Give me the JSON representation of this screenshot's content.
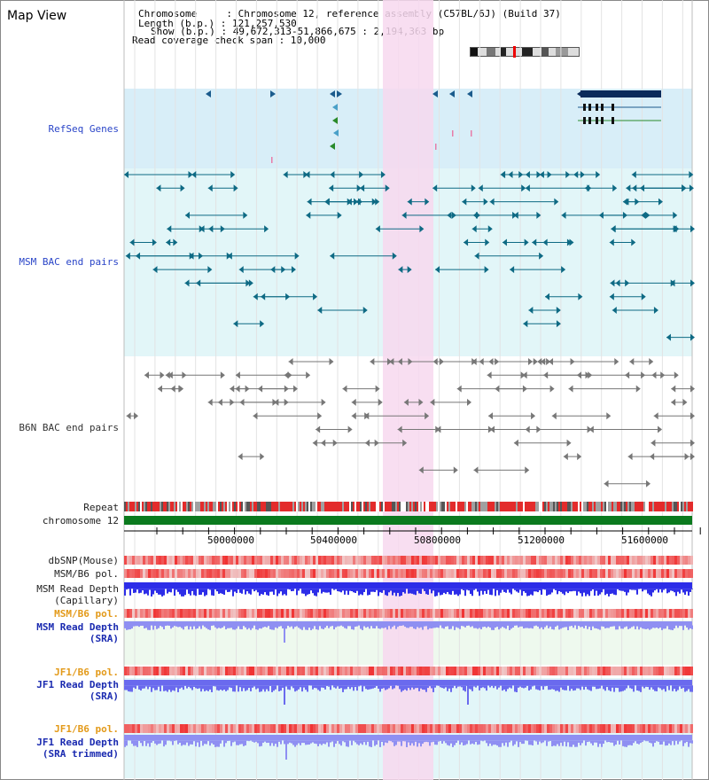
{
  "title": "Map View",
  "info": {
    "line1": "Chromosome     : Chromosome 12, reference assembly (C57BL/6J) (Build 37)",
    "line2": "Length (b.p.) : 121,257,530",
    "line3": "Show (b.p.) : 49,672,313-51,866,675 : 2,194,363 bp",
    "line4": "Read coverage check span : 10,000"
  },
  "tracks": {
    "refseq": "RefSeq Genes",
    "msm_bac": "MSM BAC end pairs",
    "b6n_bac": "B6N BAC end pairs",
    "repeat": "Repeat",
    "chromosome": "chromosome 12",
    "dbsnp": "dbSNP(Mouse)",
    "msm_pol": "MSM/B6 pol.",
    "msm_depth_cap_1": "MSM Read Depth",
    "msm_depth_cap_2": "(Capillary)",
    "msm_pol_sra": "MSM/B6 pol.",
    "msm_depth_sra_1": "MSM Read Depth",
    "msm_depth_sra_2": "(SRA)",
    "jf1_pol": "JF1/B6 pol.",
    "jf1_depth_1": "JF1 Read Depth",
    "jf1_depth_2": "(SRA)",
    "jf1_pol_2": "JF1/B6 pol.",
    "jf1_depth_trim_1": "JF1 Read Depth",
    "jf1_depth_trim_2": "(SRA trimmed)"
  },
  "axis": {
    "ticks": [
      "50000000",
      "50400000",
      "50800000",
      "51200000",
      "51600000"
    ]
  },
  "colors": {
    "refseq_bg": "#d8eef8",
    "msm_bac_bg": "#e2f6f8",
    "highlight": "#f7d8ef",
    "gene": "#0a2a5a",
    "msm_feature": "#0e6a84",
    "b6n_feature": "#777777",
    "chromosome": "#0b7a1e",
    "depth_blue": "#2d2de8",
    "depth_light": "#8f8ff2",
    "pol_red": "#e0303a"
  }
}
